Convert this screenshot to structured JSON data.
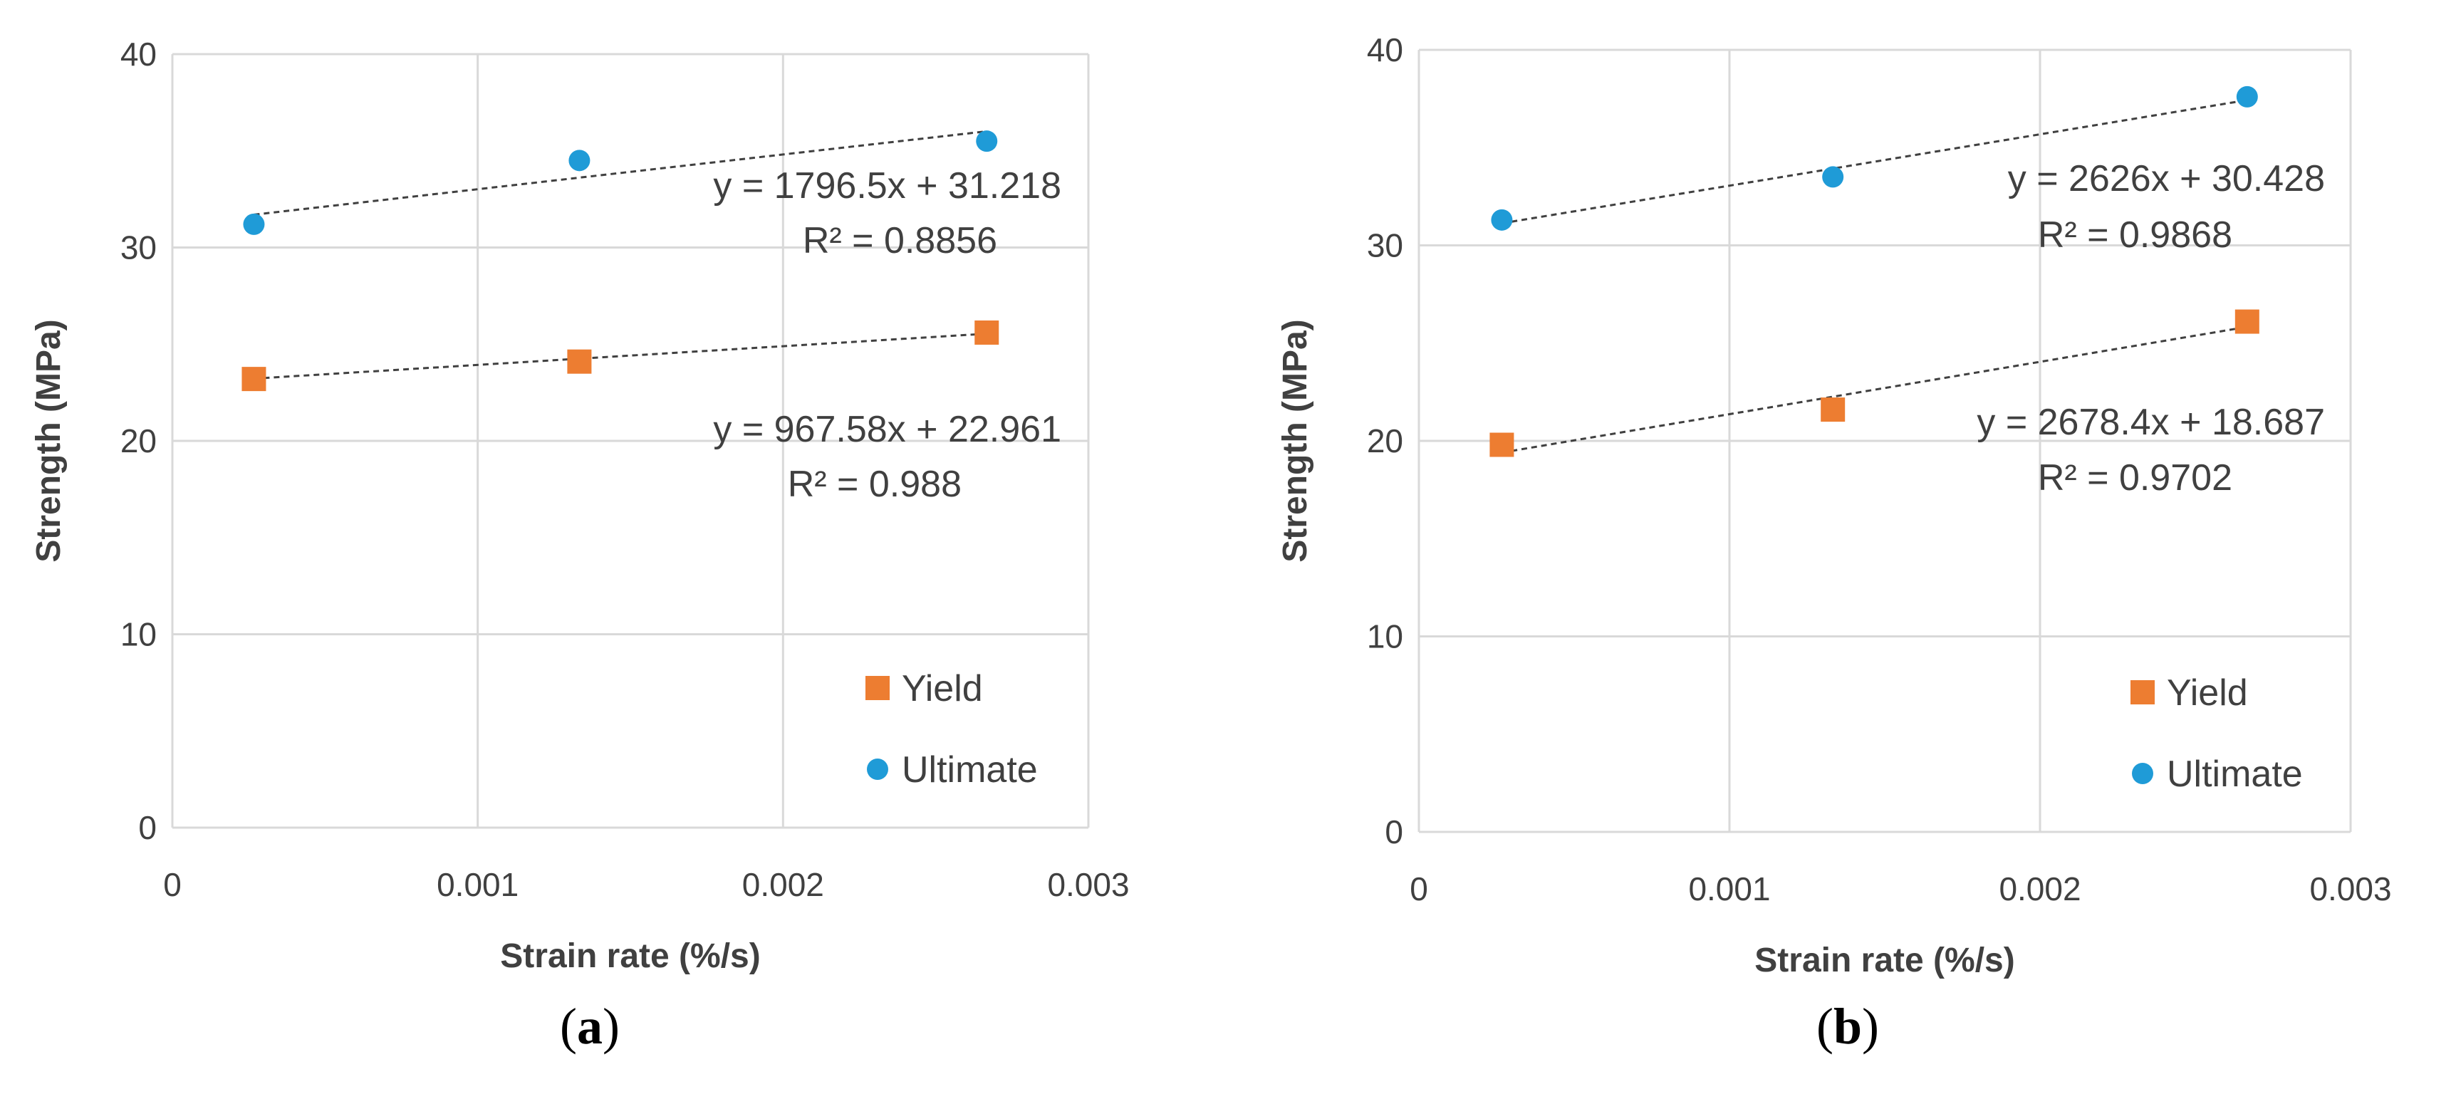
{
  "chart_data": [
    {
      "type": "scatter",
      "panel_label": "a",
      "xlabel": "Strain rate (%/s)",
      "ylabel": "Strength (MPa)",
      "xlim": [
        0,
        0.003
      ],
      "ylim": [
        0,
        40
      ],
      "xticks": [
        0,
        0.001,
        0.002,
        0.003
      ],
      "xtick_labels": [
        "0",
        "0.001",
        "0.002",
        "0.003"
      ],
      "yticks": [
        0,
        10,
        20,
        30,
        40
      ],
      "ytick_labels": [
        "0",
        "10",
        "20",
        "30",
        "40"
      ],
      "grid": true,
      "legend_position": "bottom-right",
      "series": [
        {
          "name": "Yield",
          "marker": "square",
          "color": "#ED7D31",
          "x": [
            0.000267,
            0.001333,
            0.002667
          ],
          "y": [
            23.2,
            24.1,
            25.6
          ],
          "trendline": {
            "slope": 967.58,
            "intercept": 22.961,
            "equation": "y = 967.58x + 22.961",
            "r2": "R² = 0.988"
          }
        },
        {
          "name": "Ultimate",
          "marker": "circle",
          "color": "#1F9BD7",
          "x": [
            0.000267,
            0.001333,
            0.002667
          ],
          "y": [
            31.2,
            34.5,
            35.5
          ],
          "trendline": {
            "slope": 1796.5,
            "intercept": 31.218,
            "equation": "y = 1796.5x + 31.218",
            "r2": "R² = 0.8856"
          }
        }
      ]
    },
    {
      "type": "scatter",
      "panel_label": "b",
      "xlabel": "Strain rate (%/s)",
      "ylabel": "Strength (MPa)",
      "xlim": [
        0,
        0.003
      ],
      "ylim": [
        0,
        40
      ],
      "xticks": [
        0,
        0.001,
        0.002,
        0.003
      ],
      "xtick_labels": [
        "0",
        "0.001",
        "0.002",
        "0.003"
      ],
      "yticks": [
        0,
        10,
        20,
        30,
        40
      ],
      "ytick_labels": [
        "0",
        "10",
        "20",
        "30",
        "40"
      ],
      "grid": true,
      "legend_position": "bottom-right",
      "series": [
        {
          "name": "Yield",
          "marker": "square",
          "color": "#ED7D31",
          "x": [
            0.000267,
            0.001333,
            0.002667
          ],
          "y": [
            19.8,
            21.6,
            26.1
          ],
          "trendline": {
            "slope": 2678.4,
            "intercept": 18.687,
            "equation": "y = 2678.4x + 18.687",
            "r2": "R² = 0.9702"
          }
        },
        {
          "name": "Ultimate",
          "marker": "circle",
          "color": "#1F9BD7",
          "x": [
            0.000267,
            0.001333,
            0.002667
          ],
          "y": [
            31.3,
            33.5,
            37.6
          ],
          "trendline": {
            "slope": 2626,
            "intercept": 30.428,
            "equation": "y = 2626x + 30.428",
            "r2": "R² = 0.9868"
          }
        }
      ]
    }
  ]
}
